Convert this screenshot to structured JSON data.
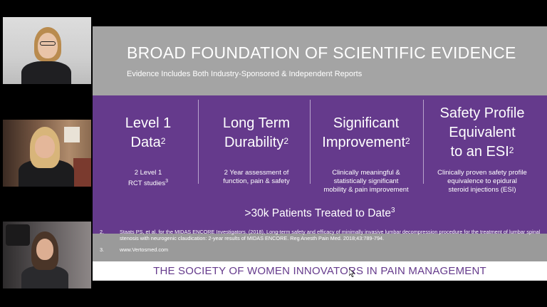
{
  "slide": {
    "title": "BROAD FOUNDATION OF SCIENTIFIC EVIDENCE",
    "subtitle": "Evidence Includes Both Industry-Sponsored & Independent Reports",
    "columns": [
      {
        "head_lines": [
          "Level 1",
          "Data"
        ],
        "head_sup": "2",
        "body_lines": [
          "2 Level 1",
          "RCT studies"
        ],
        "body_sup": "3"
      },
      {
        "head_lines": [
          "Long Term",
          "Durability"
        ],
        "head_sup": "2",
        "body_lines": [
          "2 Year assessment of",
          "function, pain & safety"
        ],
        "body_sup": ""
      },
      {
        "head_lines": [
          "Significant",
          "Improvement"
        ],
        "head_sup": "2",
        "body_lines": [
          "Clinically meaningful &",
          "statistically significant",
          "mobility & pain improvement"
        ],
        "body_sup": ""
      },
      {
        "head_lines": [
          "Safety Profile",
          "Equivalent",
          "to an ESI"
        ],
        "head_sup": "2",
        "body_lines": [
          "Clinically proven safety profile",
          "equivalence to epidural",
          "steroid injections (ESI)"
        ],
        "body_sup": ""
      }
    ],
    "banner": ">30k Patients Treated to Date",
    "banner_sup": "3",
    "references": [
      {
        "num": "2.",
        "text": "Staats PS, et al. for the MIDAS ENCORE Investigators. (2018), Long-term safety and efficacy of minimally invasive lumbar decompression procedure for the treatment of lumbar spinal stenosis with neurogenic claudication: 2-year results of MIDAS ENCORE. Reg Anesth Pain Med. 2018;43:789-794."
      },
      {
        "num": "3.",
        "text": "www.Vertosmed.com"
      }
    ],
    "footer": "THE SOCIETY OF WOMEN INNOVATORS IN PAIN MANAGEMENT"
  },
  "colors": {
    "slide_gray": "#a4a4a4",
    "purple": "#653a8c",
    "footer_bg": "#ffffff"
  },
  "participants": [
    {
      "icon": "participant-video-1"
    },
    {
      "icon": "participant-video-2"
    },
    {
      "icon": "participant-video-3"
    }
  ]
}
